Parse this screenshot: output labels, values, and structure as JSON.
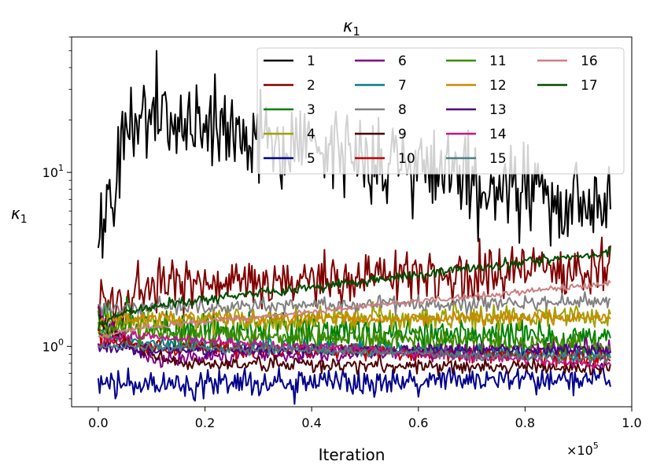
{
  "chart_data": {
    "type": "line",
    "title_base": "κ",
    "title_sub": "1",
    "xlabel": "Iteration",
    "ylabel_base": "κ",
    "ylabel_sub": "1",
    "x_multiplier_base": "×10",
    "x_multiplier_exp": "5",
    "yscale": "log",
    "xlim": [
      -0.05,
      1.0
    ],
    "ylim": [
      0.45,
      60
    ],
    "x_ticks": [
      0.0,
      0.2,
      0.4,
      0.6,
      0.8,
      1.0
    ],
    "x_tick_labels": [
      "0.0",
      "0.2",
      "0.4",
      "0.6",
      "0.8",
      "1.0"
    ],
    "y_major_ticks": [
      1,
      10
    ],
    "y_tick_labels": [
      {
        "base": "10",
        "exp": "0"
      },
      {
        "base": "10",
        "exp": "1"
      }
    ],
    "legend": {
      "placement": "top-right",
      "columns": 4
    },
    "series": [
      {
        "name": "1",
        "color": "#000000",
        "start": 3.5,
        "peak": 22,
        "peak_x": 0.08,
        "end": 6.5,
        "noise": 0.3,
        "spikes": [
          [
            0.11,
            50
          ]
        ]
      },
      {
        "name": "2",
        "color": "#800000",
        "start": 1.6,
        "peak": 2.2,
        "peak_x": 0.1,
        "end": 2.9,
        "noise": 0.16
      },
      {
        "name": "3",
        "color": "#008000",
        "start": 1.5,
        "peak": 1.3,
        "peak_x": 0.1,
        "end": 1.1,
        "noise": 0.12
      },
      {
        "name": "4",
        "color": "#a0a000",
        "start": 1.3,
        "peak": 1.4,
        "peak_x": 0.1,
        "end": 1.5,
        "noise": 0.08
      },
      {
        "name": "5",
        "color": "#00008b",
        "start": 0.6,
        "peak": 0.6,
        "peak_x": 0.1,
        "end": 0.66,
        "noise": 0.09
      },
      {
        "name": "6",
        "color": "#800080",
        "start": 1.8,
        "peak": 0.85,
        "peak_x": 0.1,
        "end": 0.98,
        "noise": 0.06
      },
      {
        "name": "7",
        "color": "#008080",
        "start": 1.2,
        "peak": 1.05,
        "peak_x": 0.1,
        "end": 0.9,
        "noise": 0.05
      },
      {
        "name": "8",
        "color": "#808080",
        "start": 1.6,
        "peak": 1.7,
        "peak_x": 0.1,
        "end": 1.8,
        "noise": 0.05
      },
      {
        "name": "9",
        "color": "#4b0000",
        "start": 1.5,
        "peak": 0.8,
        "peak_x": 0.15,
        "end": 0.75,
        "noise": 0.05
      },
      {
        "name": "10",
        "color": "#c00000",
        "start": 1.1,
        "peak": 1.0,
        "peak_x": 0.1,
        "end": 0.85,
        "noise": 0.05
      },
      {
        "name": "11",
        "color": "#3d8b00",
        "start": 1.3,
        "peak": 1.2,
        "peak_x": 0.1,
        "end": 1.0,
        "noise": 0.07
      },
      {
        "name": "12",
        "color": "#cc8800",
        "start": 1.4,
        "peak": 1.45,
        "peak_x": 0.1,
        "end": 1.45,
        "noise": 0.04
      },
      {
        "name": "13",
        "color": "#4b0082",
        "start": 1.0,
        "peak": 0.95,
        "peak_x": 0.1,
        "end": 0.95,
        "noise": 0.04
      },
      {
        "name": "14",
        "color": "#c71585",
        "start": 1.0,
        "peak": 1.15,
        "peak_x": 0.05,
        "end": 0.78,
        "noise": 0.03
      },
      {
        "name": "15",
        "color": "#4a8080",
        "start": 1.0,
        "peak": 1.0,
        "peak_x": 0.1,
        "end": 0.85,
        "noise": 0.03
      },
      {
        "name": "16",
        "color": "#cc8080",
        "start": 1.1,
        "peak": 1.3,
        "peak_x": 0.1,
        "end": 2.3,
        "noise": 0.02
      },
      {
        "name": "17",
        "color": "#004d00",
        "start": 1.3,
        "peak": 1.7,
        "peak_x": 0.1,
        "end": 3.5,
        "noise": 0.03
      }
    ]
  }
}
